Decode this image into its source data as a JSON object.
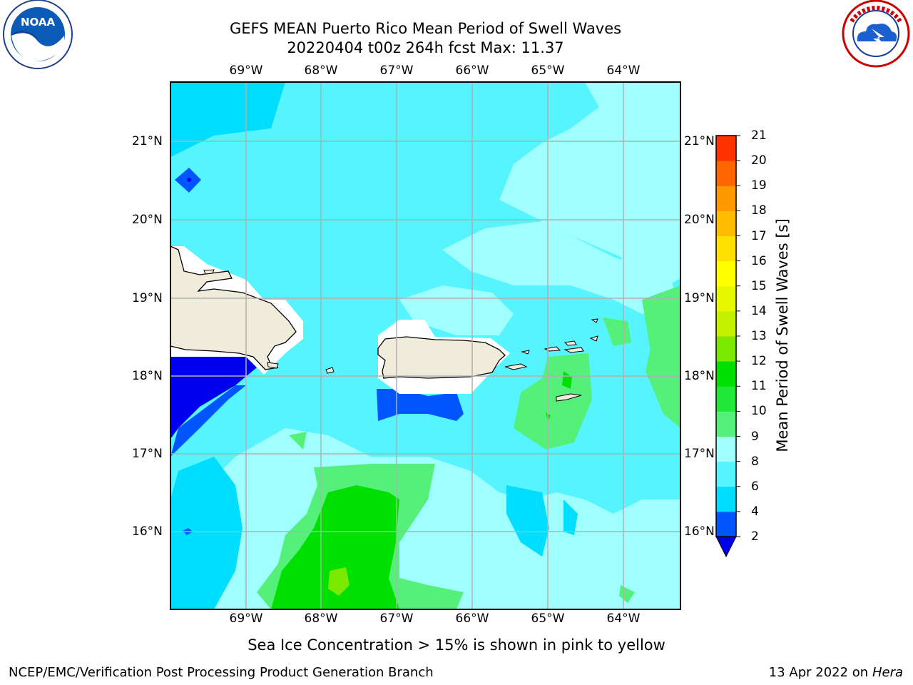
{
  "title": {
    "line1": "GEFS MEAN Puerto Rico Mean Period of Swell Waves",
    "line2": "20220404 t00z 264h fcst   Max: 11.37"
  },
  "longitudes": [
    "69°W",
    "68°W",
    "67°W",
    "66°W",
    "65°W",
    "64°W"
  ],
  "latitudes": [
    "21°N",
    "20°N",
    "19°N",
    "18°N",
    "17°N",
    "16°N"
  ],
  "colorbar": {
    "label": "Mean Period of Swell Waves [s]",
    "ticks": [
      "2",
      "4",
      "6",
      "8",
      "9",
      "10",
      "11",
      "12",
      "13",
      "14",
      "15",
      "16",
      "17",
      "18",
      "19",
      "20",
      "21"
    ],
    "colors": [
      "#0055ff",
      "#00ddff",
      "#55f4ff",
      "#a0ffff",
      "#55f07a",
      "#22e83a",
      "#00e000",
      "#7ae800",
      "#c2f200",
      "#e6f700",
      "#ffff00",
      "#ffe000",
      "#ffbb00",
      "#ff9900",
      "#ff6600",
      "#ff3300",
      "#ff0000"
    ],
    "extend_color": "#0000ee"
  },
  "note": "Sea Ice Concentration > 15% is shown in pink to yellow",
  "footer": {
    "left": "NCEP/EMC/Verification Post Processing Product Generation Branch",
    "date": "13 Apr 2022 on",
    "machine": "Hera"
  },
  "logos": {
    "left": "noaa-logo",
    "right": "nws-logo"
  }
}
